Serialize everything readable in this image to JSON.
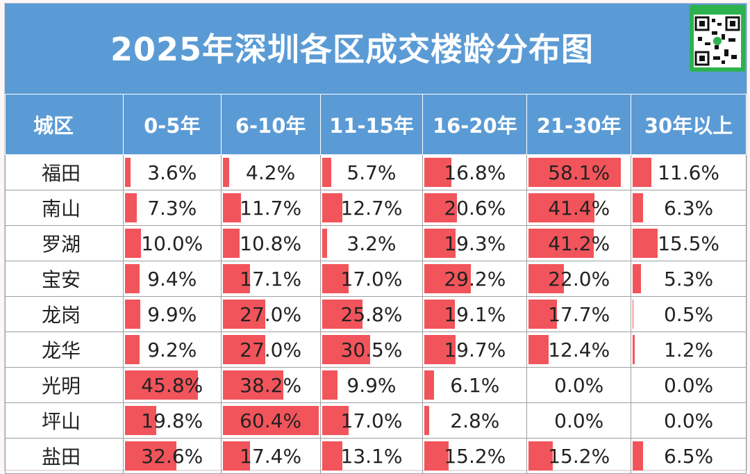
{
  "chart_data": {
    "type": "table",
    "title": "2025年深圳各区成交楼龄分布图",
    "header_label": "城区",
    "columns": [
      "0-5年",
      "6-10年",
      "11-15年",
      "16-20年",
      "21-30年",
      "30年以上"
    ],
    "bar_color": "#f2545b",
    "header_color": "#5b9bd5",
    "rows": [
      {
        "district": "福田",
        "values": [
          3.6,
          4.2,
          5.7,
          16.8,
          58.1,
          11.6
        ],
        "labels": [
          "3.6%",
          "4.2%",
          "5.7%",
          "16.8%",
          "58.1%",
          "11.6%"
        ]
      },
      {
        "district": "南山",
        "values": [
          7.3,
          11.7,
          12.7,
          20.6,
          41.4,
          6.3
        ],
        "labels": [
          "7.3%",
          "11.7%",
          "12.7%",
          "20.6%",
          "41.4%",
          "6.3%"
        ]
      },
      {
        "district": "罗湖",
        "values": [
          10.0,
          10.8,
          3.2,
          19.3,
          41.2,
          15.5
        ],
        "labels": [
          "10.0%",
          "10.8%",
          "3.2%",
          "19.3%",
          "41.2%",
          "15.5%"
        ]
      },
      {
        "district": "宝安",
        "values": [
          9.4,
          17.1,
          17.0,
          29.2,
          22.0,
          5.3
        ],
        "labels": [
          "9.4%",
          "17.1%",
          "17.0%",
          "29.2%",
          "22.0%",
          "5.3%"
        ]
      },
      {
        "district": "龙岗",
        "values": [
          9.9,
          27.0,
          25.8,
          19.1,
          17.7,
          0.5
        ],
        "labels": [
          "9.9%",
          "27.0%",
          "25.8%",
          "19.1%",
          "17.7%",
          "0.5%"
        ]
      },
      {
        "district": "龙华",
        "values": [
          9.2,
          27.0,
          30.5,
          19.7,
          12.4,
          1.2
        ],
        "labels": [
          "9.2%",
          "27.0%",
          "30.5%",
          "19.7%",
          "12.4%",
          "1.2%"
        ]
      },
      {
        "district": "光明",
        "values": [
          45.8,
          38.2,
          9.9,
          6.1,
          0.0,
          0.0
        ],
        "labels": [
          "45.8%",
          "38.2%",
          "9.9%",
          "6.1%",
          "0.0%",
          "0.0%"
        ]
      },
      {
        "district": "坪山",
        "values": [
          19.8,
          60.4,
          17.0,
          2.8,
          0.0,
          0.0
        ],
        "labels": [
          "19.8%",
          "60.4%",
          "17.0%",
          "2.8%",
          "0.0%",
          "0.0%"
        ]
      },
      {
        "district": "盐田",
        "values": [
          32.6,
          17.4,
          13.1,
          15.2,
          15.2,
          6.5
        ],
        "labels": [
          "32.6%",
          "17.4%",
          "13.1%",
          "15.2%",
          "15.2%",
          "6.5%"
        ]
      }
    ],
    "scale_max": 60.4
  }
}
